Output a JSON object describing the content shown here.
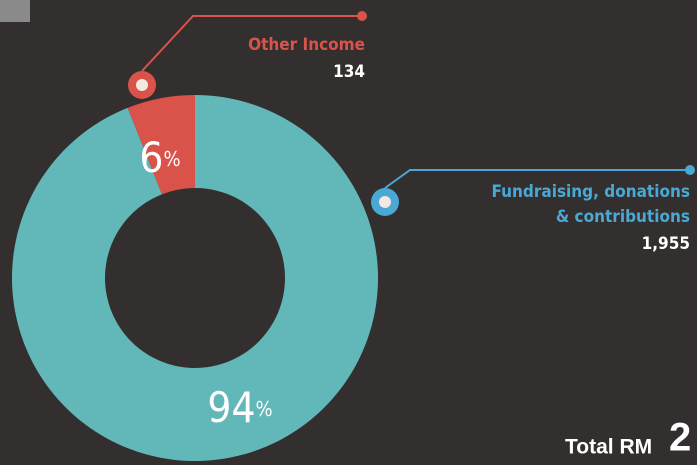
{
  "chart_data": {
    "type": "donut",
    "categories": [
      "Other Income",
      "Fundraising, donations & contributions"
    ],
    "category_lines": [
      [
        "Other Income"
      ],
      [
        "Fundraising, donations",
        "& contributions"
      ]
    ],
    "values": [
      6,
      94
    ],
    "value_labels": [
      "6%",
      "94%"
    ],
    "amounts": [
      134,
      1955
    ],
    "amount_labels": [
      "134",
      "1,955"
    ],
    "colors": [
      "#d9534a",
      "#62b8b8"
    ],
    "label_colors": [
      "#d9534a",
      "#4aa8d4"
    ],
    "total_label": "Total RM",
    "total_value": "2"
  }
}
